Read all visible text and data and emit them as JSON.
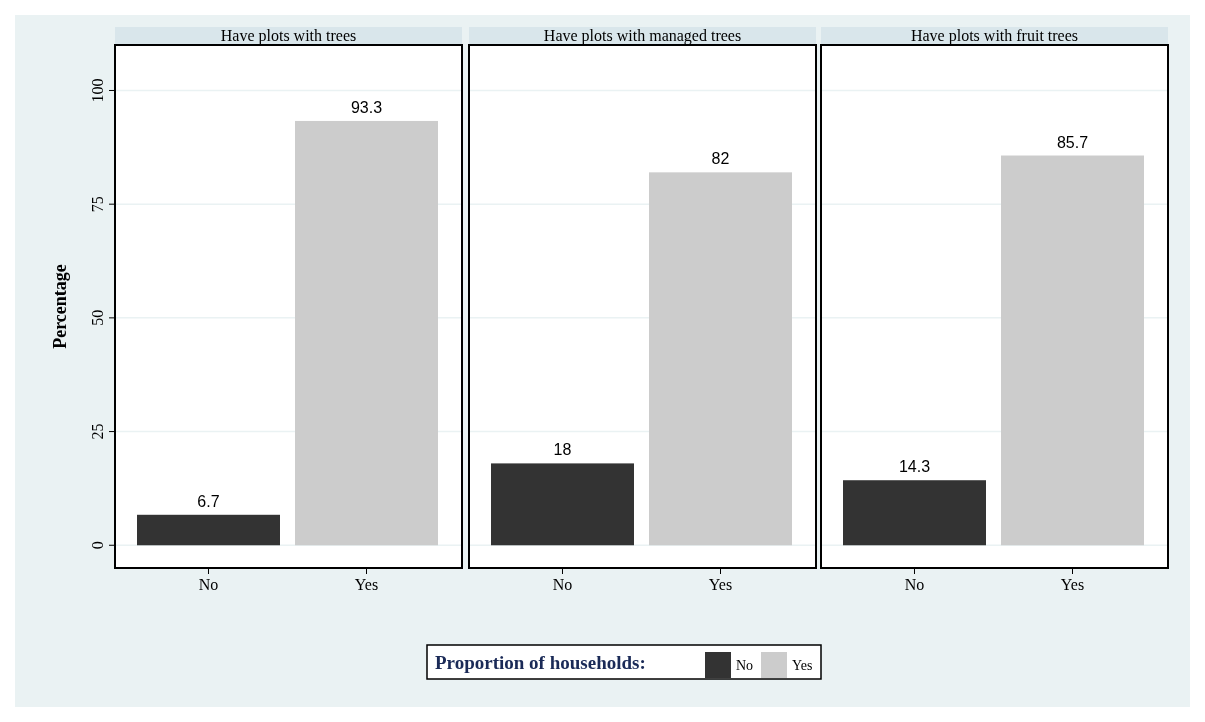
{
  "chart_data": [
    {
      "type": "bar",
      "title": "Have plots with trees",
      "ylabel": "Percentage",
      "categories": [
        "No",
        "Yes"
      ],
      "series": [
        {
          "name": "No",
          "color": "#333333",
          "values": [
            6.7,
            null
          ]
        },
        {
          "name": "Yes",
          "color": "#cccccc",
          "values": [
            null,
            93.3
          ]
        }
      ],
      "ylim": [
        -5,
        110
      ],
      "yticks": [
        0,
        25,
        50,
        75,
        100
      ],
      "grid": "y",
      "data_labels": true,
      "legend": "bottom",
      "legend_title": "Proportion of households:"
    },
    {
      "type": "bar",
      "title": "Have plots with managed trees",
      "categories": [
        "No",
        "Yes"
      ],
      "series": [
        {
          "color": "#333333",
          "values": [
            18,
            null
          ]
        },
        {
          "color": "#cccccc",
          "values": [
            null,
            82
          ]
        }
      ],
      "ylim": [
        -5,
        110
      ],
      "yticks": [
        0,
        25,
        50,
        75,
        100
      ],
      "grid": "y",
      "data_labels": true,
      "tick_labels": "x"
    },
    {
      "type": "bar",
      "title": "Have plots with fruit trees",
      "categories": [
        "No",
        "Yes"
      ],
      "series": [
        {
          "color": "#333333",
          "values": [
            14.3,
            null
          ]
        },
        {
          "color": "#cccccc",
          "values": [
            null,
            85.7
          ]
        }
      ],
      "ylim": [
        -5,
        110
      ],
      "yticks": [
        0,
        25,
        50,
        75,
        100
      ],
      "grid": "y",
      "data_labels": true,
      "tick_labels": "x"
    }
  ]
}
